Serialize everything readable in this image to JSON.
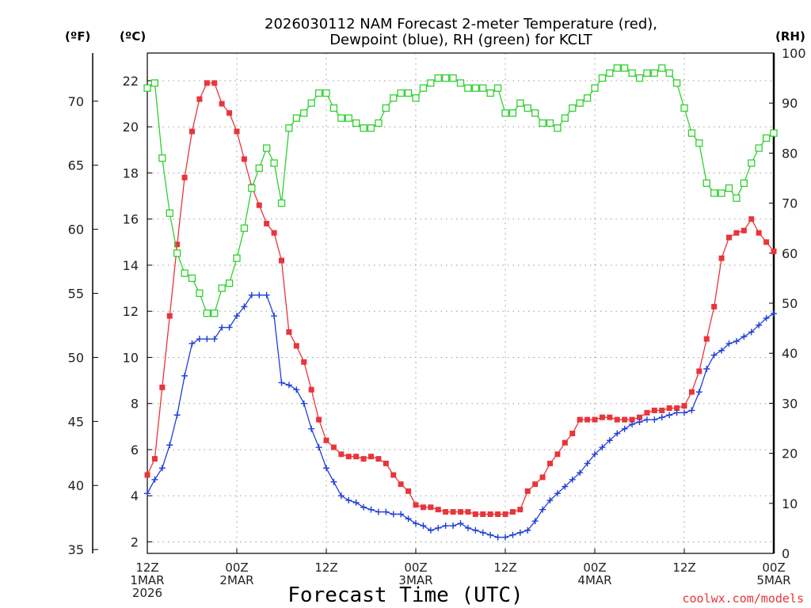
{
  "chart_data": {
    "type": "line",
    "title_lines": [
      "2026030112 NAM Forecast 2-meter Temperature (red),",
      "Dewpoint (blue), RH (green) for KCLT"
    ],
    "xlabel": "Forecast Time (UTC)",
    "credit": "coolwx.com/models",
    "units": {
      "fahrenheit": "(ºF)",
      "celsius": "(ºC)",
      "rh": "(RH)"
    },
    "axes": {
      "x": {
        "range_hours": [
          0,
          84
        ]
      },
      "y_celsius": {
        "range": [
          1.5,
          23.2
        ],
        "ticks": [
          2,
          4,
          6,
          8,
          10,
          12,
          14,
          16,
          18,
          20,
          22
        ]
      },
      "y_fahrenheit": {
        "ticks": [
          35,
          40,
          45,
          50,
          55,
          60,
          65,
          70
        ]
      },
      "y_rh": {
        "range": [
          0,
          100
        ],
        "ticks": [
          0,
          10,
          20,
          30,
          40,
          50,
          60,
          70,
          80,
          90,
          100
        ]
      }
    },
    "x_ticks": [
      {
        "hour": 0,
        "lines": [
          "12Z",
          "1MAR",
          "2026"
        ]
      },
      {
        "hour": 12,
        "lines": [
          "00Z",
          "2MAR"
        ]
      },
      {
        "hour": 24,
        "lines": [
          "12Z"
        ]
      },
      {
        "hour": 36,
        "lines": [
          "00Z",
          "3MAR"
        ]
      },
      {
        "hour": 48,
        "lines": [
          "12Z"
        ]
      },
      {
        "hour": 60,
        "lines": [
          "00Z",
          "4MAR"
        ]
      },
      {
        "hour": 72,
        "lines": [
          "12Z"
        ]
      },
      {
        "hour": 84,
        "lines": [
          "00Z",
          "5MAR"
        ]
      }
    ],
    "series": [
      {
        "name": "Temperature",
        "unit": "C",
        "color": "#e8353b",
        "marker": "filled-square",
        "hours": [
          0,
          1,
          2,
          3,
          4,
          5,
          6,
          7,
          8,
          9,
          10,
          11,
          12,
          13,
          14,
          15,
          16,
          17,
          18,
          19,
          20,
          21,
          22,
          23,
          24,
          25,
          26,
          27,
          28,
          29,
          30,
          31,
          32,
          33,
          34,
          35,
          36,
          37,
          38,
          39,
          40,
          41,
          42,
          43,
          44,
          45,
          46,
          47,
          48,
          49,
          50,
          51,
          52,
          53,
          54,
          55,
          56,
          57,
          58,
          59,
          60,
          61,
          62,
          63,
          64,
          65,
          66,
          67,
          68,
          69,
          70,
          71,
          72,
          73,
          74,
          75,
          76,
          77,
          78,
          79,
          80,
          81,
          82,
          83,
          84
        ],
        "values": [
          4.9,
          5.6,
          8.7,
          11.8,
          14.9,
          17.8,
          19.8,
          21.2,
          21.9,
          21.9,
          21.0,
          20.6,
          19.8,
          18.6,
          17.4,
          16.6,
          15.8,
          15.4,
          14.2,
          11.1,
          10.5,
          9.8,
          8.6,
          7.3,
          6.4,
          6.1,
          5.8,
          5.7,
          5.7,
          5.6,
          5.7,
          5.6,
          5.4,
          4.9,
          4.5,
          4.2,
          3.6,
          3.5,
          3.5,
          3.4,
          3.3,
          3.3,
          3.3,
          3.3,
          3.2,
          3.2,
          3.2,
          3.2,
          3.2,
          3.3,
          3.4,
          4.2,
          4.5,
          4.8,
          5.4,
          5.8,
          6.3,
          6.7,
          7.3,
          7.3,
          7.3,
          7.4,
          7.4,
          7.3,
          7.3,
          7.3,
          7.4,
          7.6,
          7.7,
          7.7,
          7.8,
          7.8,
          7.9,
          8.5,
          9.4,
          10.8,
          12.2,
          14.3,
          15.2,
          15.4,
          15.5,
          16.0,
          15.4,
          15.0,
          14.6
        ]
      },
      {
        "name": "Dewpoint",
        "unit": "C",
        "color": "#1f3fd8",
        "marker": "plus",
        "hours": [
          0,
          1,
          2,
          3,
          4,
          5,
          6,
          7,
          8,
          9,
          10,
          11,
          12,
          13,
          14,
          15,
          16,
          17,
          18,
          19,
          20,
          21,
          22,
          23,
          24,
          25,
          26,
          27,
          28,
          29,
          30,
          31,
          32,
          33,
          34,
          35,
          36,
          37,
          38,
          39,
          40,
          41,
          42,
          43,
          44,
          45,
          46,
          47,
          48,
          49,
          50,
          51,
          52,
          53,
          54,
          55,
          56,
          57,
          58,
          59,
          60,
          61,
          62,
          63,
          64,
          65,
          66,
          67,
          68,
          69,
          70,
          71,
          72,
          73,
          74,
          75,
          76,
          77,
          78,
          79,
          80,
          81,
          82,
          83,
          84
        ],
        "values": [
          4.1,
          4.7,
          5.2,
          6.2,
          7.5,
          9.2,
          10.6,
          10.8,
          10.8,
          10.8,
          11.3,
          11.3,
          11.8,
          12.2,
          12.7,
          12.7,
          12.7,
          11.8,
          8.9,
          8.8,
          8.6,
          8.0,
          6.9,
          6.1,
          5.2,
          4.6,
          4.0,
          3.8,
          3.7,
          3.5,
          3.4,
          3.3,
          3.3,
          3.2,
          3.2,
          3.0,
          2.8,
          2.7,
          2.5,
          2.6,
          2.7,
          2.7,
          2.8,
          2.6,
          2.5,
          2.4,
          2.3,
          2.2,
          2.2,
          2.3,
          2.4,
          2.5,
          2.9,
          3.4,
          3.8,
          4.1,
          4.4,
          4.7,
          5.0,
          5.4,
          5.8,
          6.1,
          6.4,
          6.7,
          6.9,
          7.1,
          7.2,
          7.3,
          7.3,
          7.4,
          7.5,
          7.6,
          7.6,
          7.7,
          8.5,
          9.5,
          10.1,
          10.3,
          10.6,
          10.7,
          10.9,
          11.1,
          11.4,
          11.7,
          11.9
        ]
      },
      {
        "name": "Relative Humidity",
        "unit": "%",
        "color": "#2ed12e",
        "marker": "open-square",
        "hours": [
          0,
          1,
          2,
          3,
          4,
          5,
          6,
          7,
          8,
          9,
          10,
          11,
          12,
          13,
          14,
          15,
          16,
          17,
          18,
          19,
          20,
          21,
          22,
          23,
          24,
          25,
          26,
          27,
          28,
          29,
          30,
          31,
          32,
          33,
          34,
          35,
          36,
          37,
          38,
          39,
          40,
          41,
          42,
          43,
          44,
          45,
          46,
          47,
          48,
          49,
          50,
          51,
          52,
          53,
          54,
          55,
          56,
          57,
          58,
          59,
          60,
          61,
          62,
          63,
          64,
          65,
          66,
          67,
          68,
          69,
          70,
          71,
          72,
          73,
          74,
          75,
          76,
          77,
          78,
          79,
          80,
          81,
          82,
          83,
          84
        ],
        "values": [
          93,
          94,
          79,
          68,
          60,
          56,
          55,
          52,
          48,
          48,
          53,
          54,
          59,
          65,
          73,
          77,
          81,
          78,
          70,
          85,
          87,
          88,
          90,
          92,
          92,
          89,
          87,
          87,
          86,
          85,
          85,
          86,
          89,
          91,
          92,
          92,
          91,
          93,
          94,
          95,
          95,
          95,
          94,
          93,
          93,
          93,
          92,
          93,
          88,
          88,
          90,
          89,
          88,
          86,
          86,
          85,
          87,
          89,
          90,
          91,
          93,
          95,
          96,
          97,
          97,
          96,
          95,
          96,
          96,
          97,
          96,
          94,
          89,
          84,
          82,
          74,
          72,
          72,
          73,
          71,
          74,
          78,
          81,
          83,
          84
        ]
      }
    ]
  }
}
